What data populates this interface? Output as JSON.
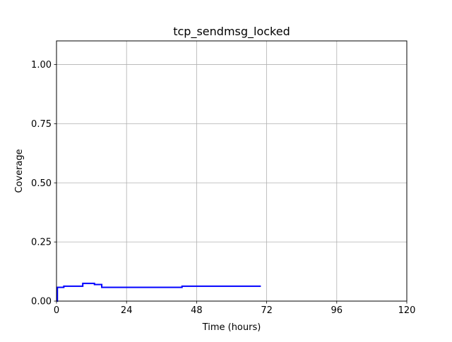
{
  "chart_data": {
    "type": "line",
    "title": "tcp_sendmsg_locked",
    "xlabel": "Time (hours)",
    "ylabel": "Coverage",
    "xlim": [
      0,
      120
    ],
    "ylim": [
      0,
      1.1
    ],
    "xticks": [
      0,
      24,
      48,
      72,
      96,
      120
    ],
    "xtick_labels": [
      "0",
      "24",
      "48",
      "72",
      "96",
      "120"
    ],
    "yticks": [
      0,
      0.25,
      0.5,
      0.75,
      1.0
    ],
    "ytick_labels": [
      "0.00",
      "0.25",
      "0.50",
      "0.75",
      "1.00"
    ],
    "grid": true,
    "series": [
      {
        "color": "#0000ff",
        "step": true,
        "x": [
          0,
          0.3,
          2.5,
          9.0,
          13.0,
          15.0,
          15.5,
          43.0,
          70.0
        ],
        "y": [
          0.0,
          0.058,
          0.063,
          0.075,
          0.07,
          0.07,
          0.058,
          0.063,
          0.063
        ]
      }
    ]
  }
}
